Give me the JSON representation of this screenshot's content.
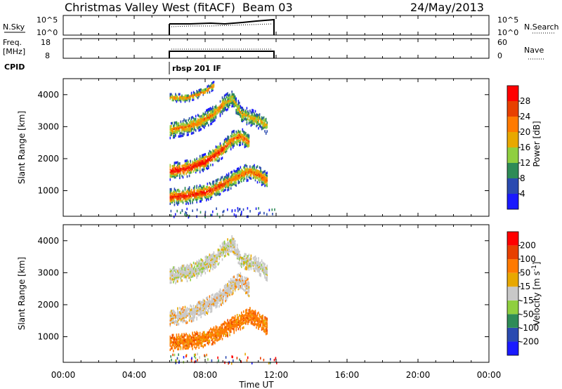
{
  "header": {
    "title": "Christmas Valley West (fitACF)",
    "beam": "Beam 03",
    "date": "24/May/2013"
  },
  "noise_panel": {
    "label": "N.Sky",
    "left_ticks": [
      "10^5",
      "10^0"
    ],
    "right_ticks": [
      "10^5",
      "10^0"
    ],
    "right_label": "N.Search"
  },
  "freq_panel": {
    "label_line1": "Freq.",
    "label_line2": "[MHz]",
    "left_ticks": [
      "18",
      "8"
    ],
    "right_ticks": [
      "60",
      "0"
    ],
    "right_label": "Nave"
  },
  "cpid": {
    "label": "CPID",
    "value": "rbsp 201 IF"
  },
  "x_axis": {
    "label": "Time UT",
    "ticks": [
      "00:00",
      "04:00",
      "08:00",
      "12:00",
      "16:00",
      "20:00",
      "00:00"
    ],
    "range_hours": [
      0,
      24
    ]
  },
  "chart_data": [
    {
      "type": "heatmap",
      "name": "power",
      "ylabel": "Slant Range [km]",
      "yticks": [
        "1000",
        "2000",
        "3000",
        "4000"
      ],
      "ylim": [
        200,
        4500
      ],
      "xlim": [
        0,
        24
      ],
      "data_time_range": [
        6,
        12
      ],
      "colorbar": {
        "label": "Power [dB]",
        "ticks": [
          "4",
          "8",
          "12",
          "16",
          "20",
          "24",
          "28"
        ],
        "colors": [
          "#1a1aff",
          "#2a4ab0",
          "#2e8b57",
          "#8fcf3f",
          "#e8a800",
          "#ff7a00",
          "#e84000",
          "#ff0000"
        ]
      },
      "bands": [
        {
          "t": [
            6.0,
            7.0,
            8.0,
            8.5,
            9.0,
            9.5,
            10.0,
            10.5,
            11.0,
            11.5
          ],
          "range_km": [
            800,
            850,
            950,
            1050,
            1200,
            1350,
            1500,
            1600,
            1500,
            1300
          ]
        },
        {
          "t": [
            6.0,
            7.0,
            7.5,
            8.0,
            8.5,
            9.0,
            9.5,
            10.0,
            10.5
          ],
          "range_km": [
            1600,
            1700,
            1800,
            1900,
            2100,
            2300,
            2600,
            2700,
            2500
          ]
        },
        {
          "t": [
            6.0,
            7.0,
            7.5,
            8.0,
            8.5,
            9.0,
            9.5,
            10.0,
            10.5,
            11.0,
            11.5
          ],
          "range_km": [
            2900,
            3000,
            3100,
            3250,
            3400,
            3700,
            3900,
            3400,
            3300,
            3200,
            3000
          ]
        },
        {
          "t": [
            6.0,
            7.0,
            8.0,
            8.5
          ],
          "range_km": [
            3900,
            3900,
            4100,
            4300
          ]
        }
      ]
    },
    {
      "type": "heatmap",
      "name": "velocity",
      "ylabel": "Slant Range [km]",
      "yticks": [
        "1000",
        "2000",
        "3000",
        "4000"
      ],
      "ylim": [
        200,
        4500
      ],
      "xlim": [
        0,
        24
      ],
      "data_time_range": [
        6,
        12
      ],
      "colorbar": {
        "label": "Velocity [m s^-1]",
        "ticks": [
          "200",
          "100",
          "50",
          "15",
          "-15",
          "-50",
          "-100",
          "-200"
        ],
        "colors": [
          "#1a1aff",
          "#2a4ab0",
          "#2e8b57",
          "#8fcf3f",
          "#c8c8c8",
          "#e8a800",
          "#ff7a00",
          "#e84000",
          "#ff0000"
        ]
      },
      "bands": [
        {
          "t": [
            6.0,
            7.0,
            8.0,
            8.5,
            9.0,
            9.5,
            10.0,
            10.5,
            11.0,
            11.5
          ],
          "range_km": [
            800,
            850,
            950,
            1050,
            1200,
            1350,
            1500,
            1650,
            1500,
            1300
          ]
        },
        {
          "t": [
            6.0,
            7.0,
            7.5,
            8.0,
            8.5,
            9.0,
            9.5,
            10.0,
            10.5
          ],
          "range_km": [
            1600,
            1700,
            1800,
            1950,
            2100,
            2300,
            2600,
            2750,
            2500
          ]
        },
        {
          "t": [
            6.0,
            7.0,
            7.5,
            8.0,
            8.5,
            9.0,
            9.5,
            10.0,
            10.5,
            11.0,
            11.5
          ],
          "range_km": [
            2900,
            3000,
            3100,
            3250,
            3400,
            3700,
            3900,
            3400,
            3350,
            3200,
            3000
          ]
        }
      ]
    }
  ]
}
